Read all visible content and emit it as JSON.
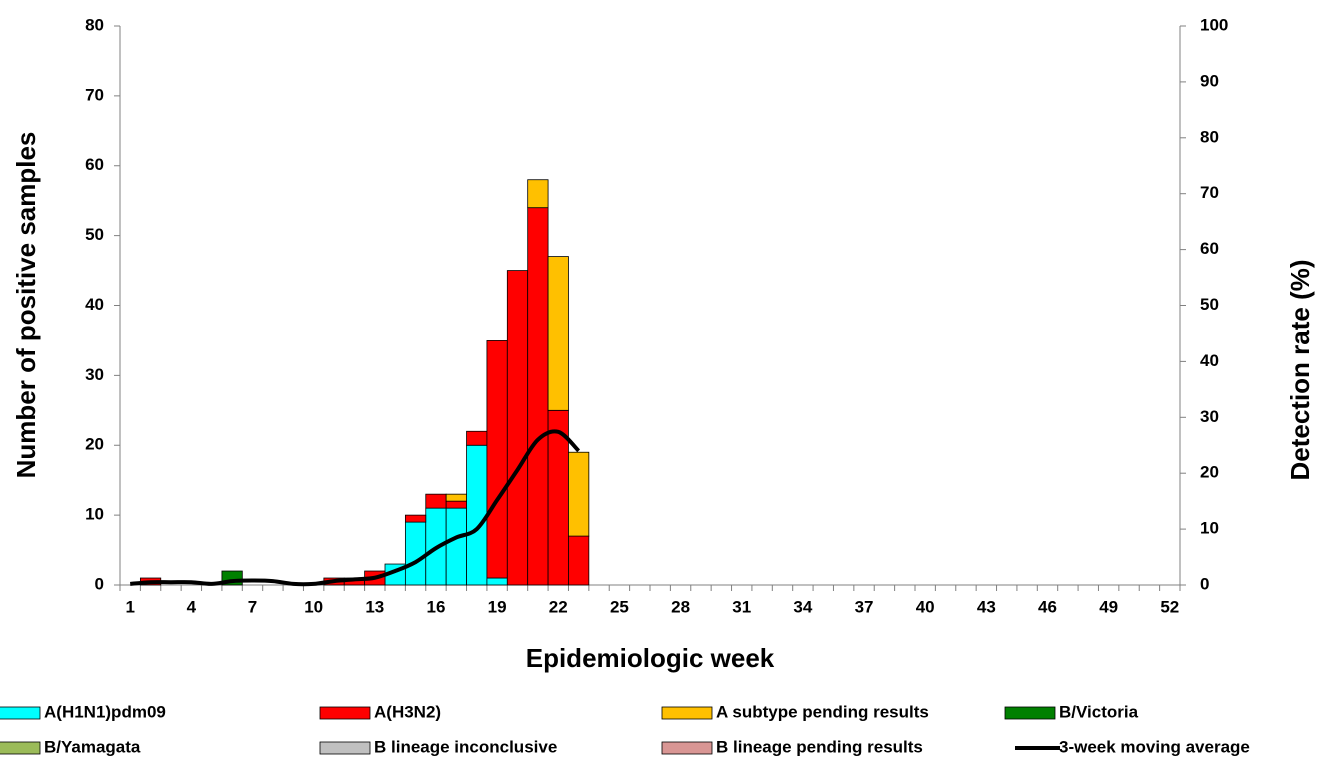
{
  "chart_data": {
    "type": "bar",
    "x_label": "Epidemiologic week",
    "y_label": "Number of positive samples",
    "y2_label": "Detection rate (%)",
    "categories": [
      "1",
      null,
      null,
      "4",
      null,
      null,
      "7",
      null,
      null,
      "10",
      null,
      null,
      "13",
      null,
      null,
      "16",
      null,
      null,
      "19",
      null,
      null,
      "22",
      null,
      null,
      "25",
      null,
      null,
      "28",
      null,
      null,
      "31",
      null,
      null,
      "34",
      null,
      null,
      "37",
      null,
      null,
      "40",
      null,
      null,
      "43",
      null,
      null,
      "46",
      null,
      null,
      "49",
      null,
      null,
      "52"
    ],
    "ylim": [
      0,
      80
    ],
    "yticks": [
      0,
      10,
      20,
      30,
      40,
      50,
      60,
      70,
      80
    ],
    "y2lim": [
      0,
      100
    ],
    "y2ticks": [
      0,
      10,
      20,
      30,
      40,
      50,
      60,
      70,
      80,
      90,
      100
    ],
    "series": [
      {
        "name": "A(H1N1)pdm09",
        "color": "#00ffff",
        "values": [
          0,
          0,
          0,
          0,
          0,
          0,
          0,
          0,
          0,
          0,
          0,
          0,
          0,
          3,
          9,
          11,
          11,
          20,
          1,
          0,
          0,
          0,
          0,
          0,
          0,
          0,
          0,
          0,
          0,
          0,
          0,
          0,
          0,
          0,
          0,
          0,
          0,
          0,
          0,
          0,
          0,
          0,
          0,
          0,
          0,
          0,
          0,
          0,
          0,
          0,
          0,
          0
        ]
      },
      {
        "name": "A(H3N2)",
        "color": "#ff0000",
        "values": [
          0,
          1,
          0,
          0,
          0,
          0,
          0,
          0,
          0,
          0,
          1,
          1,
          2,
          0,
          1,
          2,
          1,
          2,
          34,
          45,
          54,
          25,
          7,
          0,
          0,
          0,
          0,
          0,
          0,
          0,
          0,
          0,
          0,
          0,
          0,
          0,
          0,
          0,
          0,
          0,
          0,
          0,
          0,
          0,
          0,
          0,
          0,
          0,
          0,
          0,
          0,
          0
        ]
      },
      {
        "name": "A subtype pending results",
        "color": "#ffc000",
        "values": [
          0,
          0,
          0,
          0,
          0,
          0,
          0,
          0,
          0,
          0,
          0,
          0,
          0,
          0,
          0,
          0,
          1,
          0,
          0,
          0,
          4,
          22,
          12,
          0,
          0,
          0,
          0,
          0,
          0,
          0,
          0,
          0,
          0,
          0,
          0,
          0,
          0,
          0,
          0,
          0,
          0,
          0,
          0,
          0,
          0,
          0,
          0,
          0,
          0,
          0,
          0,
          0
        ]
      },
      {
        "name": "B/Victoria",
        "color": "#008000",
        "values": [
          0,
          0,
          0,
          0,
          0,
          2,
          0,
          0,
          0,
          0,
          0,
          0,
          0,
          0,
          0,
          0,
          0,
          0,
          0,
          0,
          0,
          0,
          0,
          0,
          0,
          0,
          0,
          0,
          0,
          0,
          0,
          0,
          0,
          0,
          0,
          0,
          0,
          0,
          0,
          0,
          0,
          0,
          0,
          0,
          0,
          0,
          0,
          0,
          0,
          0,
          0,
          0
        ]
      },
      {
        "name": "B/Yamagata",
        "color": "#9bbb59",
        "values": [
          0,
          0,
          0,
          0,
          0,
          0,
          0,
          0,
          0,
          0,
          0,
          0,
          0,
          0,
          0,
          0,
          0,
          0,
          0,
          0,
          0,
          0,
          0,
          0,
          0,
          0,
          0,
          0,
          0,
          0,
          0,
          0,
          0,
          0,
          0,
          0,
          0,
          0,
          0,
          0,
          0,
          0,
          0,
          0,
          0,
          0,
          0,
          0,
          0,
          0,
          0,
          0
        ]
      },
      {
        "name": "B lineage inconclusive",
        "color": "#c0c0c0",
        "values": [
          0,
          0,
          0,
          0,
          0,
          0,
          0,
          0,
          0,
          0,
          0,
          0,
          0,
          0,
          0,
          0,
          0,
          0,
          0,
          0,
          0,
          0,
          0,
          0,
          0,
          0,
          0,
          0,
          0,
          0,
          0,
          0,
          0,
          0,
          0,
          0,
          0,
          0,
          0,
          0,
          0,
          0,
          0,
          0,
          0,
          0,
          0,
          0,
          0,
          0,
          0,
          0
        ]
      },
      {
        "name": "B lineage pending results",
        "color": "#d99694",
        "values": [
          0,
          0,
          0,
          0,
          0,
          0,
          0,
          0,
          0,
          0,
          0,
          0,
          0,
          0,
          0,
          0,
          0,
          0,
          0,
          0,
          0,
          0,
          0,
          0,
          0,
          0,
          0,
          0,
          0,
          0,
          0,
          0,
          0,
          0,
          0,
          0,
          0,
          0,
          0,
          0,
          0,
          0,
          0,
          0,
          0,
          0,
          0,
          0,
          0,
          0,
          0,
          0
        ]
      },
      {
        "name": "3-week moving average",
        "color": "#000000",
        "type": "line",
        "axis": "y2",
        "values": [
          0.2,
          0.5,
          0.5,
          0.5,
          0.2,
          0.7,
          0.8,
          0.7,
          0.2,
          0.2,
          0.7,
          1,
          1.3,
          2.5,
          4.1,
          6.6,
          8.5,
          10,
          15.2,
          20.6,
          26,
          27.4,
          24,
          null,
          null,
          null,
          null,
          null,
          null,
          null,
          null,
          null,
          null,
          null,
          null,
          null,
          null,
          null,
          null,
          null,
          null,
          null,
          null,
          null,
          null,
          null,
          null,
          null,
          null,
          null,
          null,
          null
        ]
      }
    ]
  }
}
